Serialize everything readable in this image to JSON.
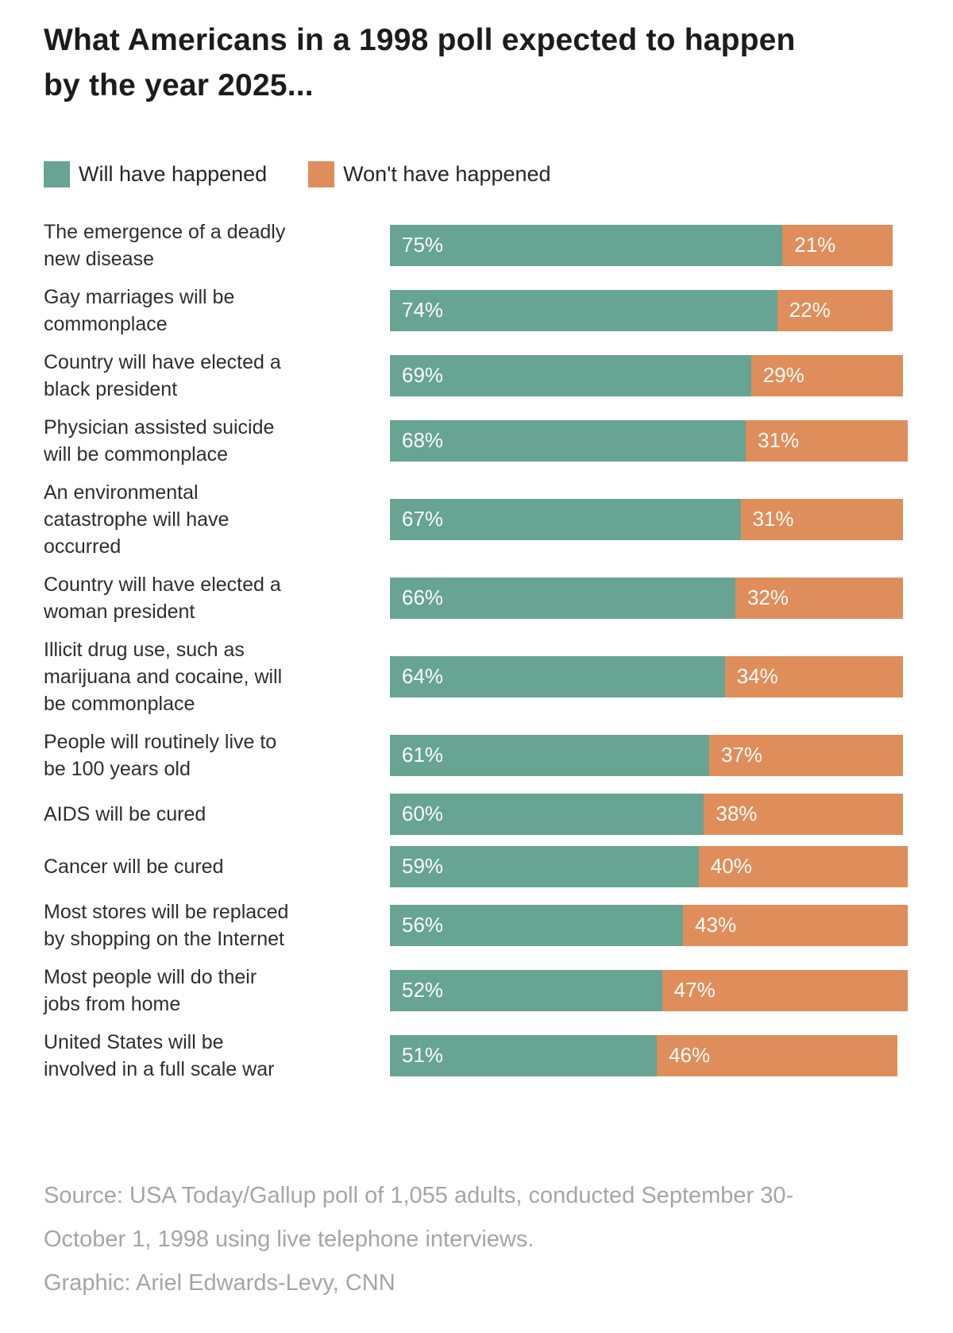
{
  "title": "What Americans in a 1998 poll expected to happen by the year 2025...",
  "legend": [
    {
      "label": "Will have happened",
      "color": "#67a493"
    },
    {
      "label": "Won't have happened",
      "color": "#df8e5b"
    }
  ],
  "chart_data": {
    "type": "bar",
    "orientation": "horizontal",
    "stacked": true,
    "xlim": [
      0,
      100
    ],
    "value_suffix": "%",
    "grid": false,
    "legend_position": "top",
    "categories": [
      "The emergence of a deadly\nnew disease",
      "Gay marriages will be\ncommonplace",
      "Country will have elected a\nblack president",
      "Physician assisted suicide\nwill be commonplace",
      "An environmental\ncatastrophe will have\noccurred",
      "Country will have elected a\nwoman president",
      "Illicit drug use, such as\nmarijuana and cocaine, will\nbe commonplace",
      "People will routinely live to\nbe 100 years old",
      "AIDS will be cured",
      "Cancer will be cured",
      "Most stores will be replaced\nby shopping on the Internet",
      "Most people will do their\njobs from home",
      "United States will be\ninvolved in a full scale war"
    ],
    "series": [
      {
        "name": "Will have happened",
        "color": "#67a493",
        "values": [
          75,
          74,
          69,
          68,
          67,
          66,
          64,
          61,
          60,
          59,
          56,
          52,
          51
        ]
      },
      {
        "name": "Won't have happened",
        "color": "#df8e5b",
        "values": [
          21,
          22,
          29,
          31,
          31,
          32,
          34,
          37,
          38,
          40,
          43,
          47,
          46
        ]
      }
    ]
  },
  "footer": {
    "source": "Source: USA Today/Gallup poll of 1,055 adults, conducted September 30-\nOctober 1, 1998 using live telephone interviews.",
    "credit": "Graphic: Ariel Edwards-Levy, CNN"
  }
}
